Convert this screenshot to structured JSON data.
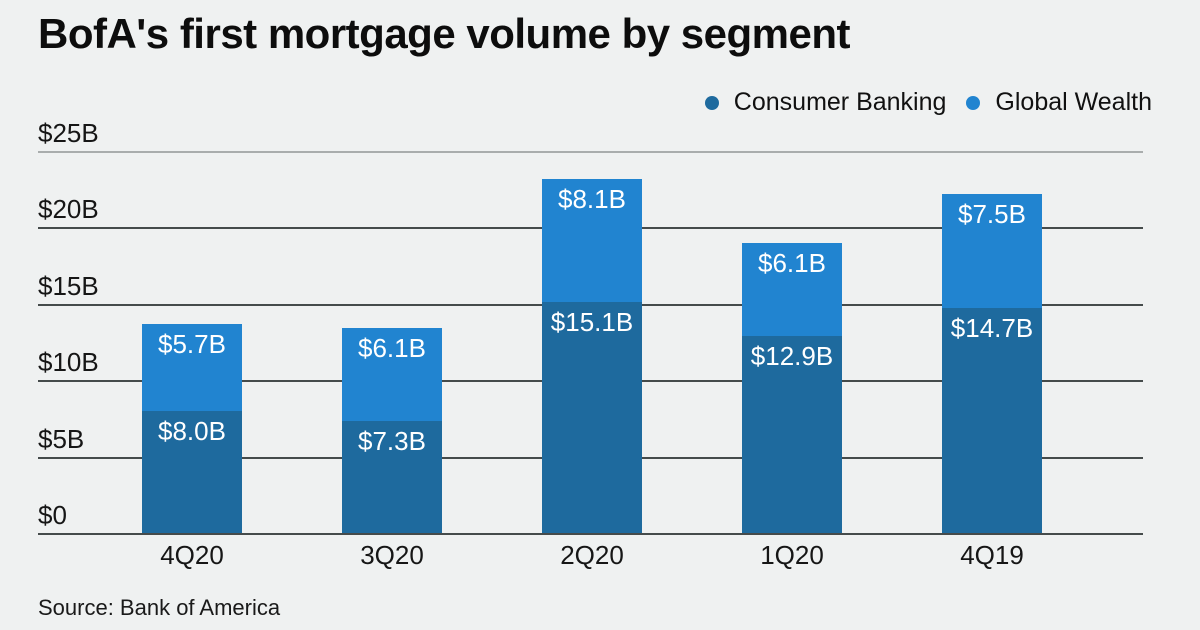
{
  "title": "BofA's first mortgage volume by segment",
  "source": "Source: Bank of America",
  "legend": [
    {
      "label": "Consumer Banking",
      "color": "#1e6a9e"
    },
    {
      "label": "Global Wealth",
      "color": "#2184d0"
    }
  ],
  "colors": {
    "background": "#eff1f1",
    "consumer_banking": "#1e6a9e",
    "global_wealth": "#2184d0",
    "gridline": "#454b4b",
    "gridline_top": "#a9adad",
    "bar_label_text": "#ffffff",
    "axis_text": "#161616"
  },
  "chart_data": {
    "type": "bar",
    "stacked": true,
    "title": "BofA's first mortgage volume by segment",
    "categories": [
      "4Q20",
      "3Q20",
      "2Q20",
      "1Q20",
      "4Q19"
    ],
    "series": [
      {
        "name": "Consumer Banking",
        "color": "#1e6a9e",
        "values": [
          8.0,
          7.3,
          15.1,
          12.9,
          14.7
        ],
        "labels": [
          "$8.0B",
          "$7.3B",
          "$15.1B",
          "$12.9B",
          "$14.7B"
        ]
      },
      {
        "name": "Global Wealth",
        "color": "#2184d0",
        "values": [
          5.7,
          6.1,
          8.1,
          6.1,
          7.5
        ],
        "labels": [
          "$5.7B",
          "$6.1B",
          "$8.1B",
          "$6.1B",
          "$7.5B"
        ]
      }
    ],
    "y_ticks": [
      "$0",
      "$5B",
      "$10B",
      "$15B",
      "$20B",
      "$25B"
    ],
    "y_tick_values": [
      0,
      5,
      10,
      15,
      20,
      25
    ],
    "ylim": [
      0,
      25
    ],
    "xlabel": "",
    "ylabel": "",
    "grid": true,
    "legend_position": "top-right",
    "source": "Source: Bank of America"
  }
}
